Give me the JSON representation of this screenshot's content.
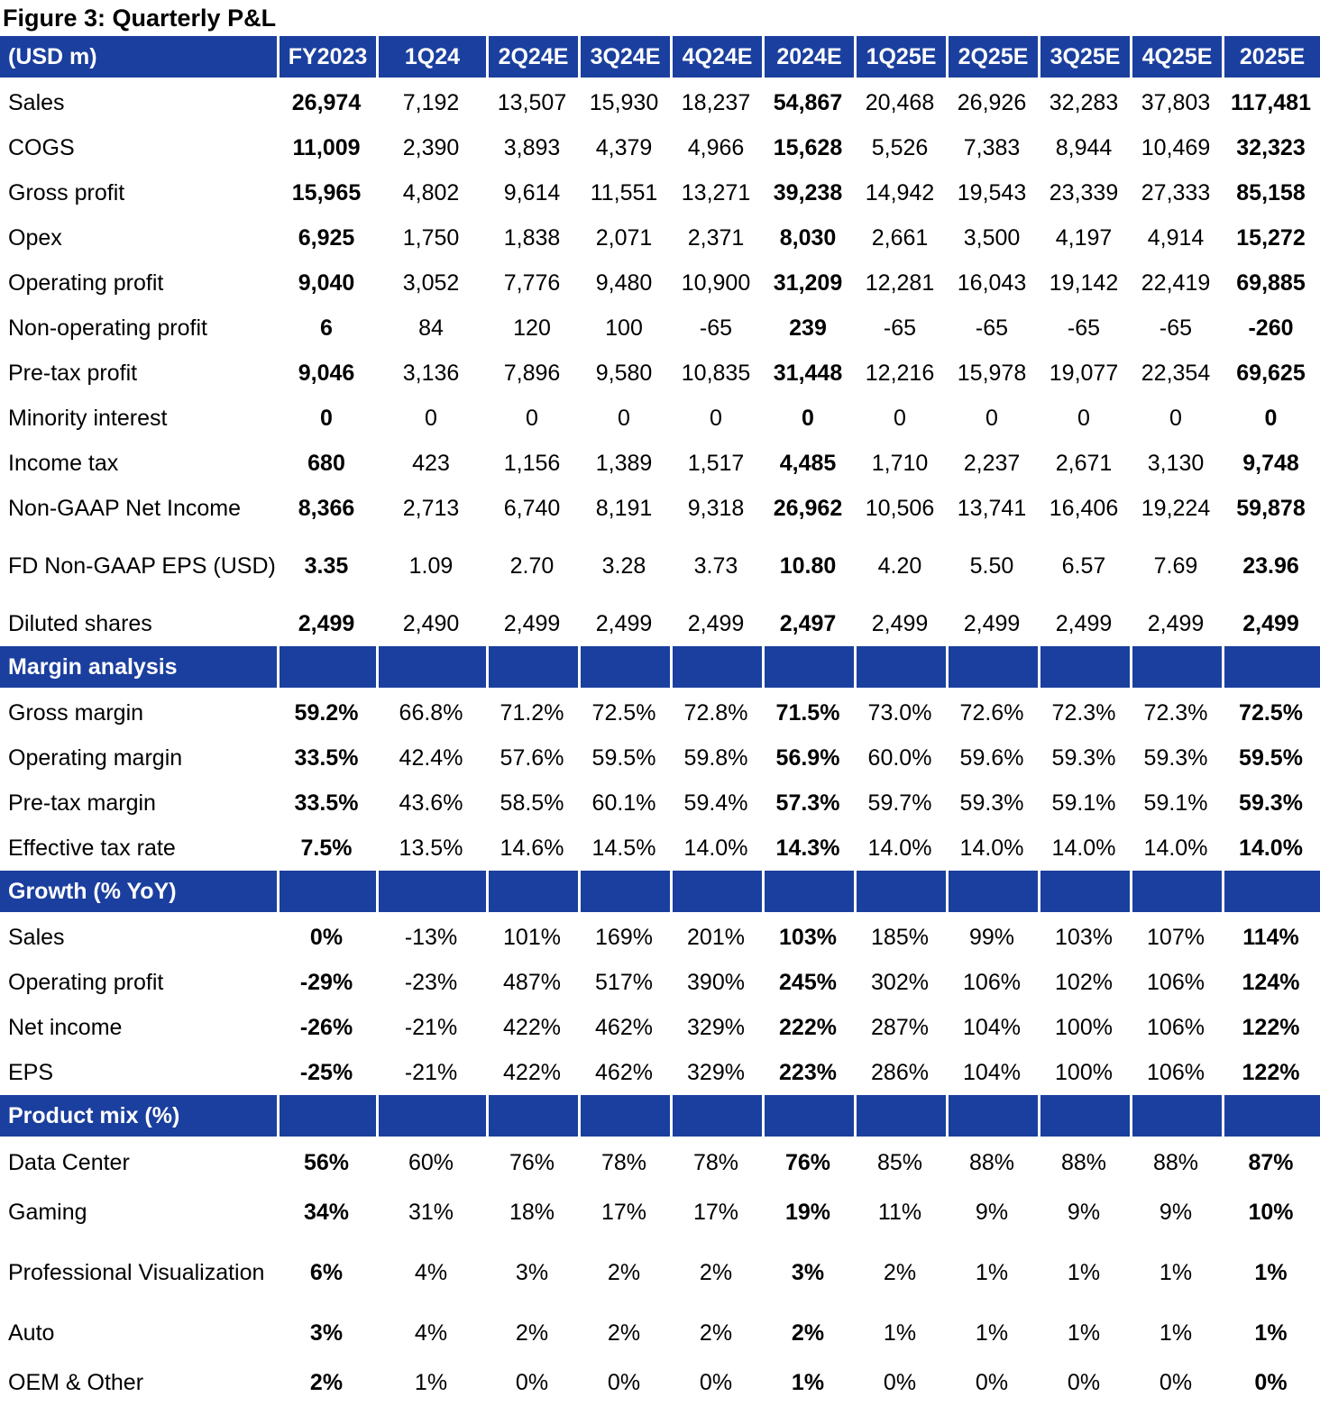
{
  "figure_title": "Figure 3: Quarterly P&L",
  "columns": [
    "(USD m)",
    "FY2023",
    "1Q24",
    "2Q24E",
    "3Q24E",
    "4Q24E",
    "2024E",
    "1Q25E",
    "2Q25E",
    "3Q25E",
    "4Q25E",
    "2025E"
  ],
  "bold_columns": [
    1,
    6,
    11
  ],
  "sections": [
    {
      "title": null,
      "rows": [
        {
          "label": "Sales",
          "values": [
            "26,974",
            "7,192",
            "13,507",
            "15,930",
            "18,237",
            "54,867",
            "20,468",
            "26,926",
            "32,283",
            "37,803",
            "117,481"
          ]
        },
        {
          "label": "COGS",
          "values": [
            "11,009",
            "2,390",
            "3,893",
            "4,379",
            "4,966",
            "15,628",
            "5,526",
            "7,383",
            "8,944",
            "10,469",
            "32,323"
          ]
        },
        {
          "label": "Gross profit",
          "values": [
            "15,965",
            "4,802",
            "9,614",
            "11,551",
            "13,271",
            "39,238",
            "14,942",
            "19,543",
            "23,339",
            "27,333",
            "85,158"
          ]
        },
        {
          "label": "Opex",
          "values": [
            "6,925",
            "1,750",
            "1,838",
            "2,071",
            "2,371",
            "8,030",
            "2,661",
            "3,500",
            "4,197",
            "4,914",
            "15,272"
          ]
        },
        {
          "label": "Operating profit",
          "values": [
            "9,040",
            "3,052",
            "7,776",
            "9,480",
            "10,900",
            "31,209",
            "12,281",
            "16,043",
            "19,142",
            "22,419",
            "69,885"
          ]
        },
        {
          "label": "Non-operating profit",
          "values": [
            "6",
            "84",
            "120",
            "100",
            "-65",
            "239",
            "-65",
            "-65",
            "-65",
            "-65",
            "-260"
          ]
        },
        {
          "label": "Pre-tax profit",
          "values": [
            "9,046",
            "3,136",
            "7,896",
            "9,580",
            "10,835",
            "31,448",
            "12,216",
            "15,978",
            "19,077",
            "22,354",
            "69,625"
          ]
        },
        {
          "label": "Minority interest",
          "values": [
            "0",
            "0",
            "0",
            "0",
            "0",
            "0",
            "0",
            "0",
            "0",
            "0",
            "0"
          ]
        },
        {
          "label": "Income tax",
          "values": [
            "680",
            "423",
            "1,156",
            "1,389",
            "1,517",
            "4,485",
            "1,710",
            "2,237",
            "2,671",
            "3,130",
            "9,748"
          ]
        },
        {
          "label": "Non-GAAP Net Income",
          "values": [
            "8,366",
            "2,713",
            "6,740",
            "8,191",
            "9,318",
            "26,962",
            "10,506",
            "13,741",
            "16,406",
            "19,224",
            "59,878"
          ]
        },
        {
          "label": "FD Non-GAAP EPS (USD)",
          "values": [
            "3.35",
            "1.09",
            "2.70",
            "3.28",
            "3.73",
            "10.80",
            "4.20",
            "5.50",
            "6.57",
            "7.69",
            "23.96"
          ]
        },
        {
          "label": "Diluted shares",
          "values": [
            "2,499",
            "2,490",
            "2,499",
            "2,499",
            "2,499",
            "2,497",
            "2,499",
            "2,499",
            "2,499",
            "2,499",
            "2,499"
          ]
        }
      ]
    },
    {
      "title": "Margin analysis",
      "rows": [
        {
          "label": "Gross margin",
          "values": [
            "59.2%",
            "66.8%",
            "71.2%",
            "72.5%",
            "72.8%",
            "71.5%",
            "73.0%",
            "72.6%",
            "72.3%",
            "72.3%",
            "72.5%"
          ]
        },
        {
          "label": "Operating margin",
          "values": [
            "33.5%",
            "42.4%",
            "57.6%",
            "59.5%",
            "59.8%",
            "56.9%",
            "60.0%",
            "59.6%",
            "59.3%",
            "59.3%",
            "59.5%"
          ]
        },
        {
          "label": "Pre-tax margin",
          "values": [
            "33.5%",
            "43.6%",
            "58.5%",
            "60.1%",
            "59.4%",
            "57.3%",
            "59.7%",
            "59.3%",
            "59.1%",
            "59.1%",
            "59.3%"
          ]
        },
        {
          "label": "Effective tax rate",
          "values": [
            "7.5%",
            "13.5%",
            "14.6%",
            "14.5%",
            "14.0%",
            "14.3%",
            "14.0%",
            "14.0%",
            "14.0%",
            "14.0%",
            "14.0%"
          ]
        }
      ]
    },
    {
      "title": "Growth (% YoY)",
      "rows": [
        {
          "label": "Sales",
          "values": [
            "0%",
            "-13%",
            "101%",
            "169%",
            "201%",
            "103%",
            "185%",
            "99%",
            "103%",
            "107%",
            "114%"
          ]
        },
        {
          "label": "Operating profit",
          "values": [
            "-29%",
            "-23%",
            "487%",
            "517%",
            "390%",
            "245%",
            "302%",
            "106%",
            "102%",
            "106%",
            "124%"
          ]
        },
        {
          "label": "Net income",
          "values": [
            "-26%",
            "-21%",
            "422%",
            "462%",
            "329%",
            "222%",
            "287%",
            "104%",
            "100%",
            "106%",
            "122%"
          ]
        },
        {
          "label": "EPS",
          "values": [
            "-25%",
            "-21%",
            "422%",
            "462%",
            "329%",
            "223%",
            "286%",
            "104%",
            "100%",
            "106%",
            "122%"
          ]
        }
      ]
    },
    {
      "title": "Product mix (%)",
      "rows": [
        {
          "label": "Data Center",
          "values": [
            "56%",
            "60%",
            "76%",
            "78%",
            "78%",
            "76%",
            "85%",
            "88%",
            "88%",
            "88%",
            "87%"
          ]
        },
        {
          "label": "Gaming",
          "values": [
            "34%",
            "31%",
            "18%",
            "17%",
            "17%",
            "19%",
            "11%",
            "9%",
            "9%",
            "9%",
            "10%"
          ]
        },
        {
          "label": "Professional Visualization",
          "values": [
            "6%",
            "4%",
            "3%",
            "2%",
            "2%",
            "3%",
            "2%",
            "1%",
            "1%",
            "1%",
            "1%"
          ]
        },
        {
          "label": "Auto",
          "values": [
            "3%",
            "4%",
            "2%",
            "2%",
            "2%",
            "2%",
            "1%",
            "1%",
            "1%",
            "1%",
            "1%"
          ]
        },
        {
          "label": "OEM & Other",
          "values": [
            "2%",
            "1%",
            "0%",
            "0%",
            "0%",
            "1%",
            "0%",
            "0%",
            "0%",
            "0%",
            "0%"
          ]
        }
      ]
    }
  ]
}
